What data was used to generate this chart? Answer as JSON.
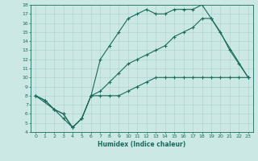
{
  "xlabel": "Humidex (Indice chaleur)",
  "bg_color": "#cce8e4",
  "grid_color": "#aad0cc",
  "line_color": "#1a6b5a",
  "xlim": [
    -0.5,
    23.5
  ],
  "ylim": [
    4,
    18
  ],
  "xticks": [
    0,
    1,
    2,
    3,
    4,
    5,
    6,
    7,
    8,
    9,
    10,
    11,
    12,
    13,
    14,
    15,
    16,
    17,
    18,
    19,
    20,
    21,
    22,
    23
  ],
  "yticks": [
    4,
    5,
    6,
    7,
    8,
    9,
    10,
    11,
    12,
    13,
    14,
    15,
    16,
    17,
    18
  ],
  "line1_x": [
    0,
    1,
    2,
    3,
    4,
    5,
    6,
    7,
    8,
    9,
    10,
    11,
    12,
    13,
    14,
    15,
    16,
    17,
    18,
    19,
    20,
    21,
    22,
    23
  ],
  "line1_y": [
    8,
    7.5,
    6.5,
    6.0,
    4.5,
    5.5,
    8.0,
    12.0,
    13.5,
    15.0,
    16.5,
    17.0,
    17.5,
    17.0,
    17.0,
    17.5,
    17.5,
    17.5,
    18.0,
    16.5,
    15.0,
    13.0,
    11.5,
    10.0
  ],
  "line2_x": [
    0,
    2,
    3,
    4,
    5,
    6,
    7,
    8,
    9,
    10,
    11,
    12,
    13,
    14,
    15,
    16,
    17,
    18,
    19,
    23
  ],
  "line2_y": [
    8,
    6.5,
    6.0,
    4.5,
    5.5,
    8.0,
    8.5,
    9.5,
    10.5,
    11.5,
    12.0,
    12.5,
    13.0,
    13.5,
    14.5,
    15.0,
    15.5,
    16.5,
    16.5,
    10.0
  ],
  "line3_x": [
    0,
    1,
    2,
    3,
    4,
    5,
    6,
    7,
    8,
    9,
    10,
    11,
    12,
    13,
    14,
    15,
    16,
    17,
    18,
    19,
    20,
    21,
    22,
    23
  ],
  "line3_y": [
    8,
    7.5,
    6.5,
    5.5,
    4.5,
    5.5,
    8.0,
    8.0,
    8.0,
    8.0,
    8.5,
    9.0,
    9.5,
    10.0,
    10.0,
    10.0,
    10.0,
    10.0,
    10.0,
    10.0,
    10.0,
    10.0,
    10.0,
    10.0
  ]
}
